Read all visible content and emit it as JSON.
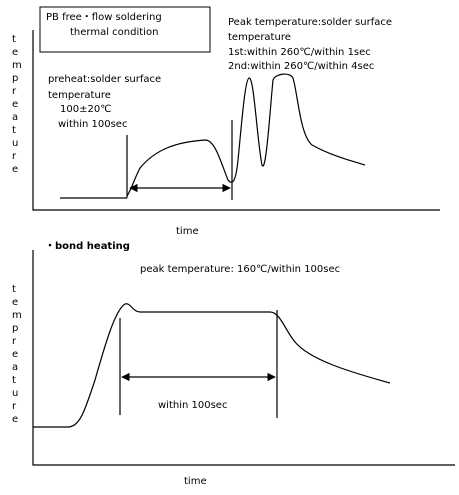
{
  "top_chart": {
    "box_title": [
      "PB free・flow soldering",
      "thermal condition"
    ],
    "peak_note": [
      "Peak temperature:solder surface",
      "temperature",
      "1st:within 260℃/within 1sec",
      "2nd:within 260℃/within 4sec"
    ],
    "preheat_note": [
      "preheat:solder surface",
      "temperature",
      "100±20℃",
      "within 100sec"
    ],
    "y_label": "tempreature",
    "x_label": "time"
  },
  "bottom_chart": {
    "title": "・bond heating",
    "peak_note": "peak temperature: 160℃/within 100sec",
    "y_label": "tempreature",
    "span_note": "within 100sec",
    "x_label": "time"
  }
}
